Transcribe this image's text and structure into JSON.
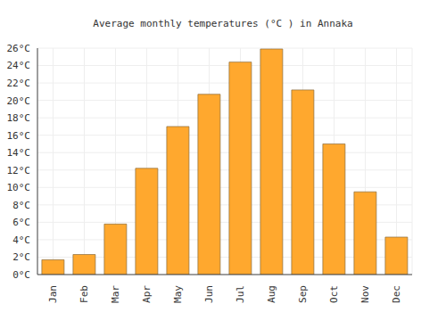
{
  "chart_data": {
    "type": "bar",
    "title": "Average monthly temperatures (°C ) in Annaka",
    "categories": [
      "Jan",
      "Feb",
      "Mar",
      "Apr",
      "May",
      "Jun",
      "Jul",
      "Aug",
      "Sep",
      "Oct",
      "Nov",
      "Dec"
    ],
    "values": [
      1.7,
      2.3,
      5.8,
      12.2,
      17.0,
      20.7,
      24.4,
      25.9,
      21.2,
      15.0,
      9.5,
      4.3
    ],
    "color": "#ffa82e",
    "ylim": [
      0,
      26
    ],
    "yticks": [
      {
        "value": 0,
        "label": "0°C"
      },
      {
        "value": 2,
        "label": "2°C"
      },
      {
        "value": 4,
        "label": "4°C"
      },
      {
        "value": 6,
        "label": "6°C"
      },
      {
        "value": 8,
        "label": "8°C"
      },
      {
        "value": 10,
        "label": "10°C"
      },
      {
        "value": 12,
        "label": "12°C"
      },
      {
        "value": 14,
        "label": "14°C"
      },
      {
        "value": 16,
        "label": "16°C"
      },
      {
        "value": 18,
        "label": "18°C"
      },
      {
        "value": 20,
        "label": "20°C"
      },
      {
        "value": 22,
        "label": "22°C"
      },
      {
        "value": 24,
        "label": "24°C"
      },
      {
        "value": 26,
        "label": "26°C"
      }
    ],
    "grid": true
  }
}
